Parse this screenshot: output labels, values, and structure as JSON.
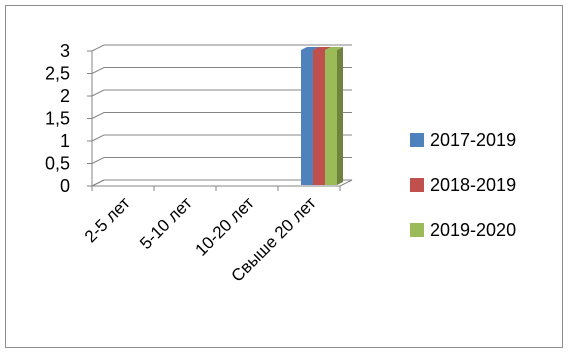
{
  "chart_data": {
    "type": "bar",
    "title": "",
    "xlabel": "",
    "ylabel": "",
    "categories": [
      "2-5 лет",
      "5-10 лет",
      "10-20 лет",
      "Свыше 20 лет"
    ],
    "series": [
      {
        "name": "2017-2019",
        "values": [
          0,
          0,
          0,
          3
        ]
      },
      {
        "name": "2018-2019",
        "values": [
          0,
          0,
          0,
          3
        ]
      },
      {
        "name": "2019-2020",
        "values": [
          0,
          0,
          0,
          3
        ]
      }
    ],
    "ylim": [
      0,
      3
    ],
    "yticks": [
      "0",
      "0,5",
      "1",
      "1,5",
      "2",
      "2,5",
      "3"
    ],
    "grid": true,
    "legend_position": "right",
    "colors": [
      "#4f81bd",
      "#c0504d",
      "#9bbb59"
    ],
    "style": "3d-clustered-column"
  }
}
